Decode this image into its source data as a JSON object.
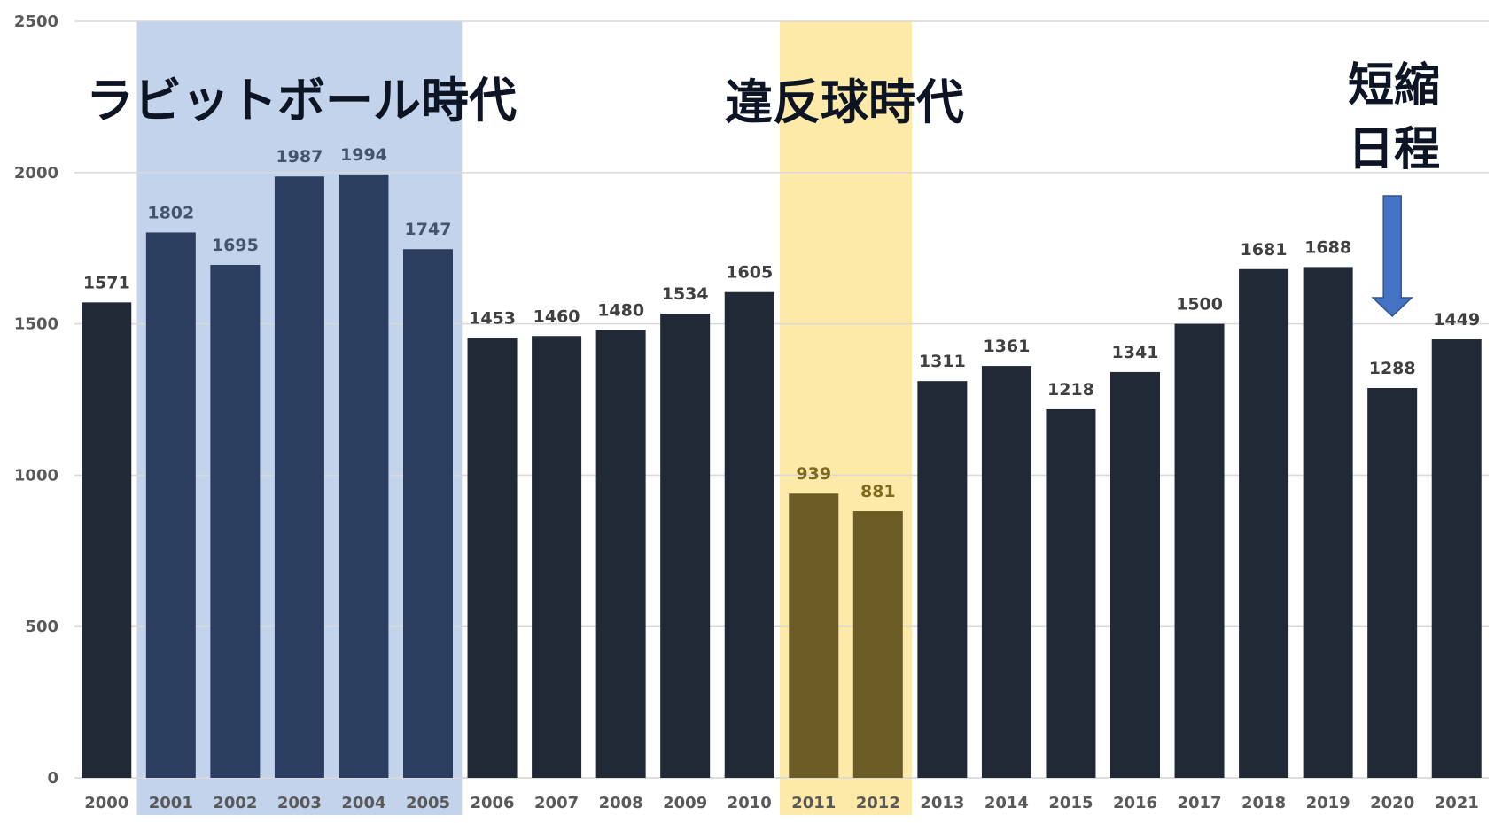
{
  "chart_data": {
    "type": "bar",
    "categories": [
      "2000",
      "2001",
      "2002",
      "2003",
      "2004",
      "2005",
      "2006",
      "2007",
      "2008",
      "2009",
      "2010",
      "2011",
      "2012",
      "2013",
      "2014",
      "2015",
      "2016",
      "2017",
      "2018",
      "2019",
      "2020",
      "2021"
    ],
    "values": [
      1571,
      1802,
      1695,
      1987,
      1994,
      1747,
      1453,
      1460,
      1480,
      1534,
      1605,
      939,
      881,
      1311,
      1361,
      1218,
      1341,
      1500,
      1681,
      1688,
      1288,
      1449
    ],
    "ylim": [
      0,
      2500
    ],
    "yticks": [
      0,
      500,
      1000,
      1500,
      2000,
      2500
    ],
    "grid": true,
    "title": "",
    "xlabel": "",
    "ylabel": "",
    "eras": [
      {
        "label": "ラビットボール時代",
        "from": "2001",
        "to": "2005",
        "band_color": "#c3d3ec",
        "bar_color": "#2c3e5f",
        "label_color": "#44546a"
      },
      {
        "label": "違反球時代",
        "from": "2011",
        "to": "2012",
        "band_color": "#fde9a8",
        "bar_color": "#6b5b24",
        "label_color": "#7f6a20"
      }
    ],
    "annotation": {
      "lines": [
        "短縮",
        "日程"
      ],
      "target": "2020",
      "arrow_color": "#4472c4"
    }
  },
  "colors": {
    "bar_default": "#212836",
    "label_default": "#404040",
    "grid": "#d9d9d9"
  }
}
